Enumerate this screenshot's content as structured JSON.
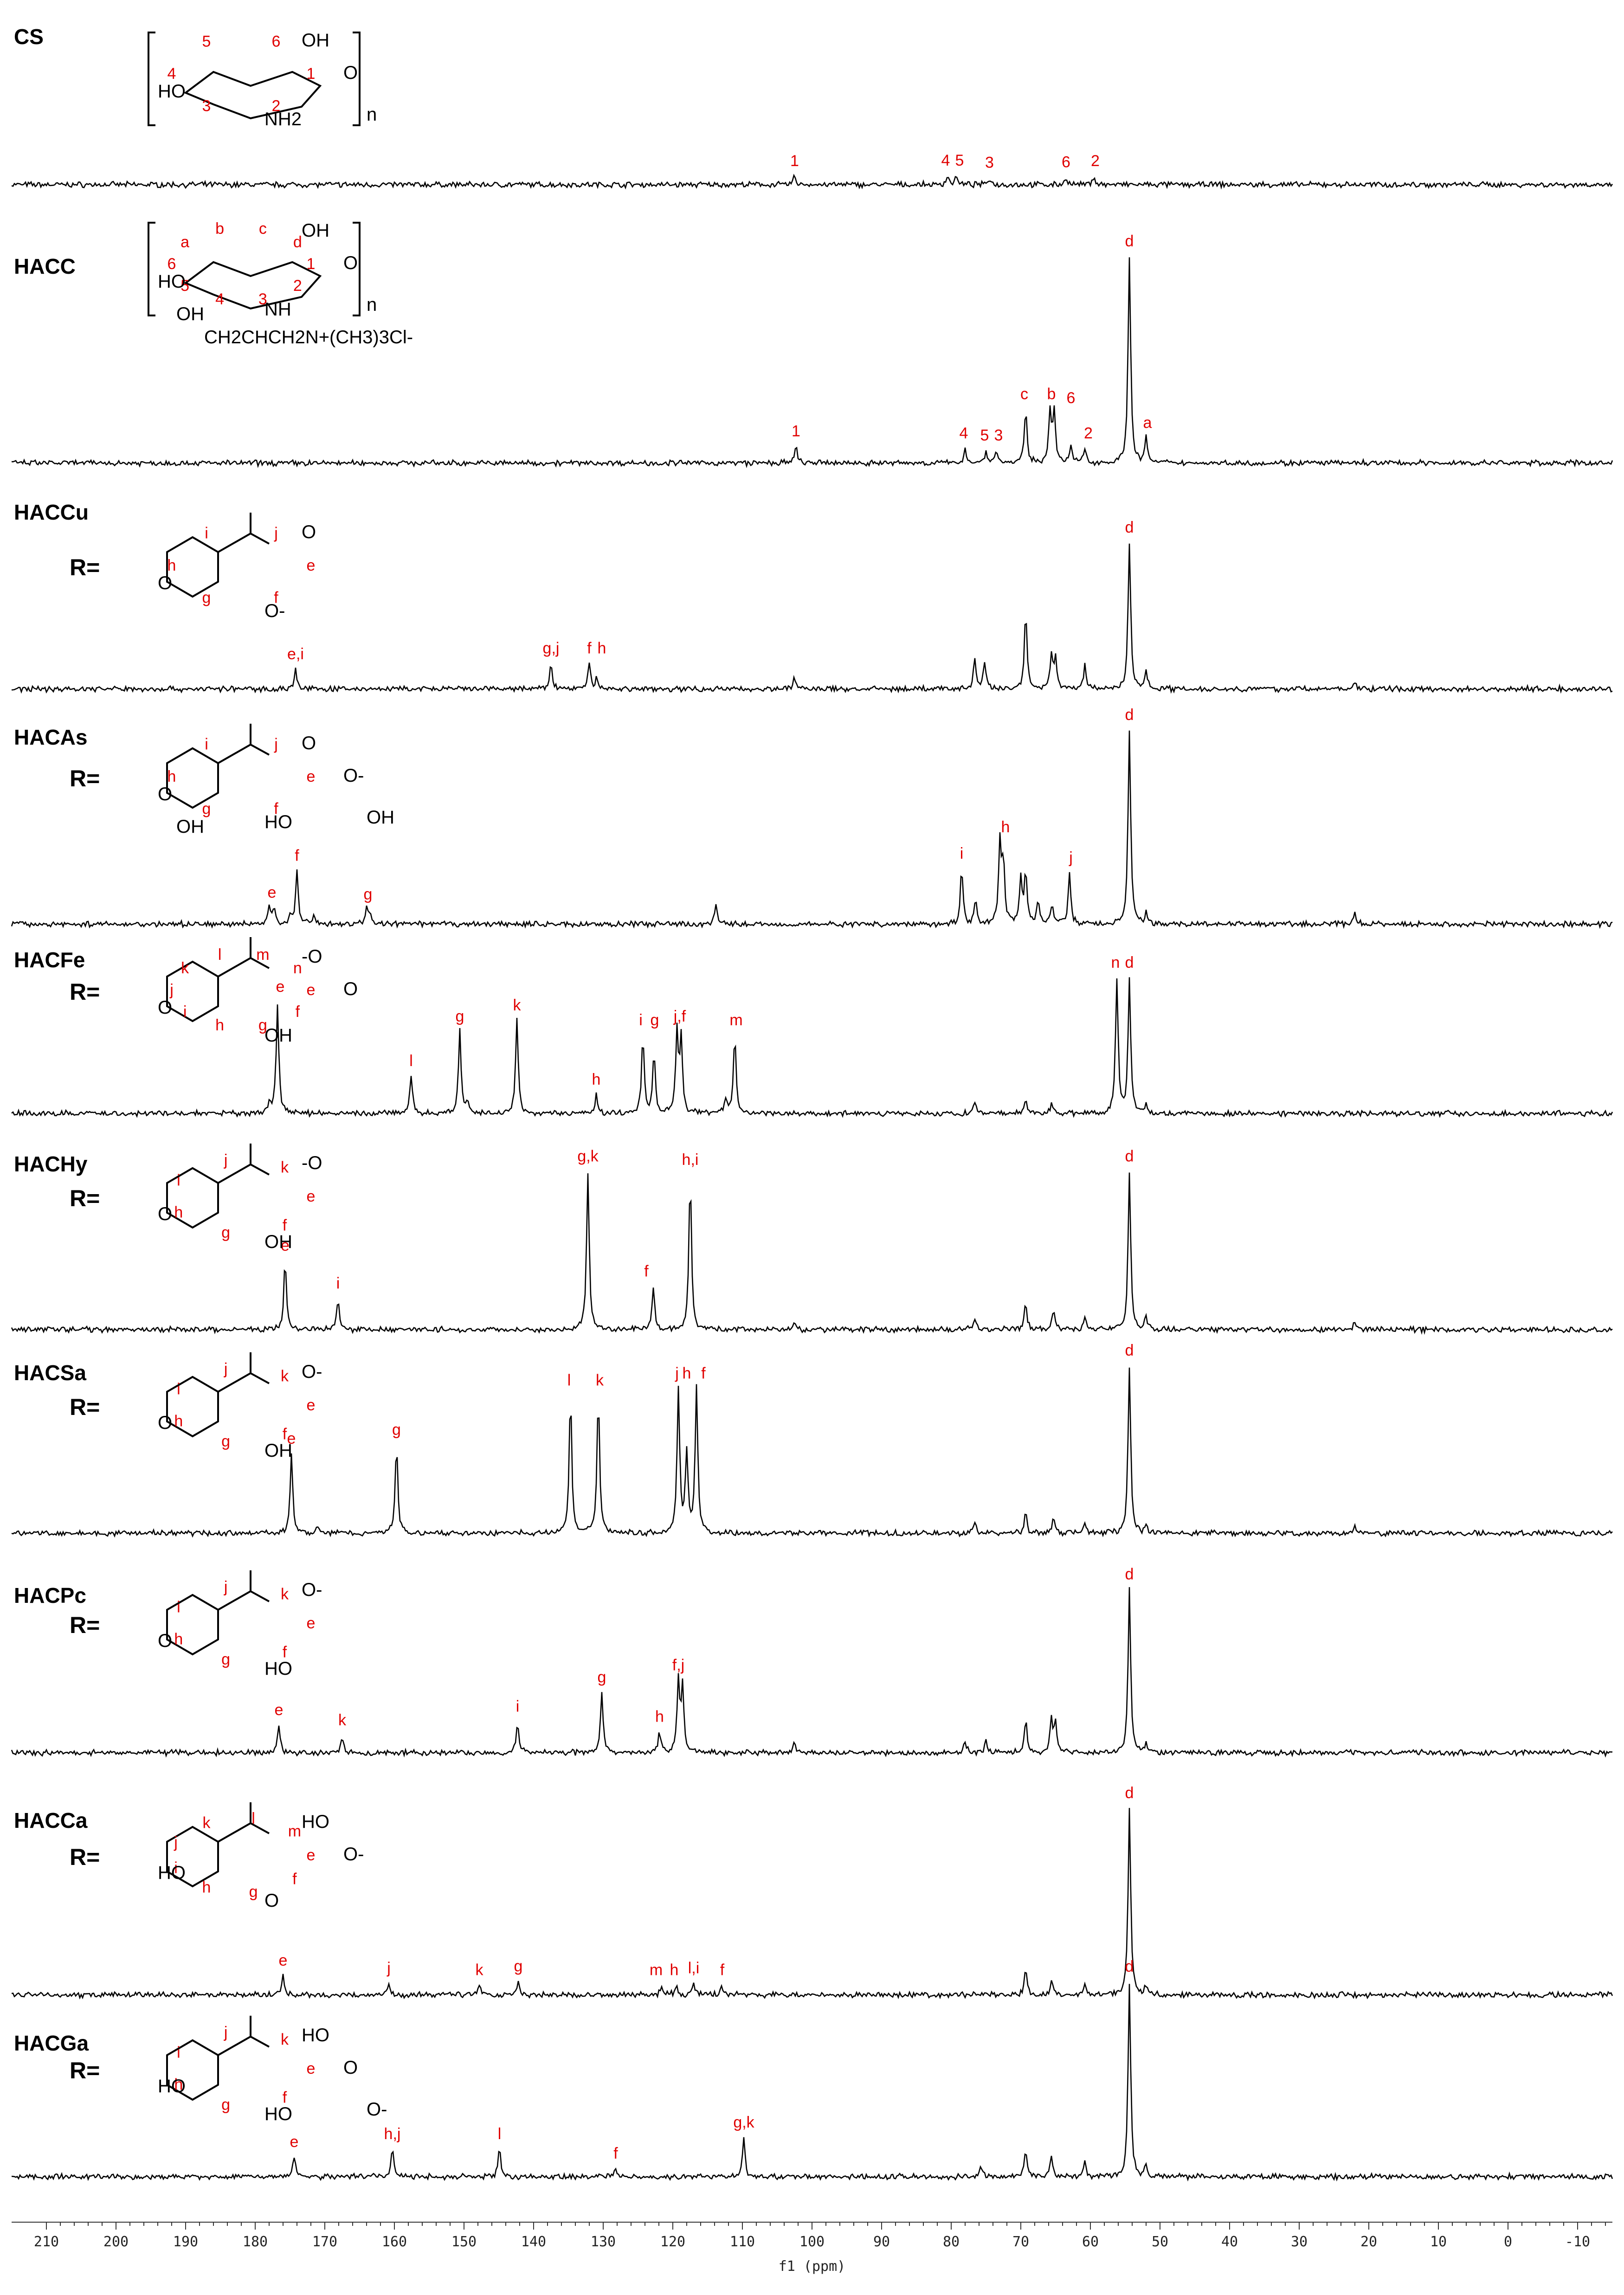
{
  "chart_data": {
    "type": "line",
    "subtype": "stacked 13C NMR spectra",
    "xlabel": "f1 (ppm)",
    "xlim": [
      215,
      -15
    ],
    "x_reversed": true,
    "x_ticks": [
      210,
      200,
      190,
      180,
      170,
      160,
      150,
      140,
      130,
      120,
      110,
      100,
      90,
      80,
      70,
      60,
      50,
      40,
      30,
      20,
      10,
      0,
      -10
    ],
    "line_color": "#000000",
    "label_color": "#e00000",
    "spectra": [
      {
        "name": "CS",
        "structure": {
          "r_label": "",
          "atom_labels": [
            "1",
            "2",
            "3",
            "4",
            "5",
            "6"
          ],
          "text": [
            "HO",
            "OH",
            "NH2",
            "O",
            "n"
          ]
        },
        "peaks": [
          {
            "x": 102.5,
            "h": 0.15
          },
          {
            "x": 80.5,
            "h": 0.16
          },
          {
            "x": 79.3,
            "h": 0.14
          },
          {
            "x": 74.5,
            "h": 0.12
          },
          {
            "x": 63.5,
            "h": 0.13
          },
          {
            "x": 59.5,
            "h": 0.15
          }
        ],
        "labels": [
          {
            "text": "1",
            "x": 102.5
          },
          {
            "text": "4",
            "x": 80.8
          },
          {
            "text": "5",
            "x": 78.8
          },
          {
            "text": "3",
            "x": 74.5
          },
          {
            "text": "6",
            "x": 63.5
          },
          {
            "text": "2",
            "x": 59.3
          }
        ]
      },
      {
        "name": "HACC",
        "structure": {
          "r_label": "",
          "atom_labels": [
            "1",
            "2",
            "3",
            "4",
            "5",
            "6",
            "a",
            "b",
            "c",
            "d"
          ],
          "text": [
            "HO",
            "OH",
            "NH",
            "O",
            "n",
            "OH",
            "CH2CHCH2N+(CH3)3Cl-"
          ]
        },
        "peaks": [
          {
            "x": 102.3,
            "h": 0.08
          },
          {
            "x": 78.0,
            "h": 0.07
          },
          {
            "x": 75.0,
            "h": 0.06
          },
          {
            "x": 73.5,
            "h": 0.06
          },
          {
            "x": 69.3,
            "h": 0.26
          },
          {
            "x": 65.8,
            "h": 0.26
          },
          {
            "x": 65.2,
            "h": 0.24
          },
          {
            "x": 62.8,
            "h": 0.08
          },
          {
            "x": 60.8,
            "h": 0.07
          },
          {
            "x": 54.4,
            "h": 1.0
          },
          {
            "x": 52.0,
            "h": 0.12
          }
        ],
        "labels": [
          {
            "text": "1",
            "x": 102.3
          },
          {
            "text": "4",
            "x": 78.2
          },
          {
            "text": "5",
            "x": 75.2
          },
          {
            "text": "3",
            "x": 73.2
          },
          {
            "text": "c",
            "x": 69.5
          },
          {
            "text": "b",
            "x": 65.6
          },
          {
            "text": "6",
            "x": 62.8
          },
          {
            "text": "2",
            "x": 60.3
          },
          {
            "text": "d",
            "x": 54.4
          },
          {
            "text": "a",
            "x": 51.8
          }
        ]
      },
      {
        "name": "HACCu",
        "structure": {
          "r_label": "R=",
          "atom_labels": [
            "e",
            "f",
            "g",
            "h",
            "i",
            "j"
          ],
          "text": [
            "O",
            "O",
            "O-"
          ]
        },
        "peaks": [
          {
            "x": 174.2,
            "h": 0.1
          },
          {
            "x": 137.5,
            "h": 0.13
          },
          {
            "x": 132.0,
            "h": 0.13
          },
          {
            "x": 130.9,
            "h": 0.06
          },
          {
            "x": 102.5,
            "h": 0.06
          },
          {
            "x": 76.6,
            "h": 0.16
          },
          {
            "x": 75.2,
            "h": 0.14
          },
          {
            "x": 69.3,
            "h": 0.4
          },
          {
            "x": 65.6,
            "h": 0.18
          },
          {
            "x": 65.0,
            "h": 0.16
          },
          {
            "x": 60.8,
            "h": 0.12
          },
          {
            "x": 54.4,
            "h": 0.75
          },
          {
            "x": 52.0,
            "h": 0.1
          },
          {
            "x": 22.0,
            "h": 0.03
          }
        ],
        "labels": [
          {
            "text": "e,i",
            "x": 174.2
          },
          {
            "text": "g,j",
            "x": 137.5
          },
          {
            "text": "f",
            "x": 132.0
          },
          {
            "text": "h",
            "x": 130.2
          },
          {
            "text": "d",
            "x": 54.4
          }
        ]
      },
      {
        "name": "HACAs",
        "structure": {
          "r_label": "R=",
          "atom_labels": [
            "e",
            "f",
            "g",
            "h",
            "i",
            "j"
          ],
          "text": [
            "O",
            "O",
            "HO",
            "O-",
            "OH",
            "OH"
          ]
        },
        "peaks": [
          {
            "x": 178.0,
            "h": 0.08
          },
          {
            "x": 177.3,
            "h": 0.08
          },
          {
            "x": 175.0,
            "h": 0.05
          },
          {
            "x": 174.0,
            "h": 0.26
          },
          {
            "x": 171.5,
            "h": 0.05
          },
          {
            "x": 164.0,
            "h": 0.07
          },
          {
            "x": 163.5,
            "h": 0.06
          },
          {
            "x": 113.8,
            "h": 0.1
          },
          {
            "x": 78.5,
            "h": 0.27
          },
          {
            "x": 76.5,
            "h": 0.12
          },
          {
            "x": 73.0,
            "h": 0.4
          },
          {
            "x": 72.5,
            "h": 0.3
          },
          {
            "x": 70.0,
            "h": 0.22
          },
          {
            "x": 69.3,
            "h": 0.26
          },
          {
            "x": 67.5,
            "h": 0.12
          },
          {
            "x": 65.5,
            "h": 0.1
          },
          {
            "x": 63.0,
            "h": 0.25
          },
          {
            "x": 54.4,
            "h": 0.95
          },
          {
            "x": 52.0,
            "h": 0.05
          },
          {
            "x": 22.0,
            "h": 0.05
          }
        ],
        "labels": [
          {
            "text": "e",
            "x": 177.6
          },
          {
            "text": "f",
            "x": 174.0
          },
          {
            "text": "g",
            "x": 163.8
          },
          {
            "text": "i",
            "x": 78.5
          },
          {
            "text": "h",
            "x": 72.2
          },
          {
            "text": "j",
            "x": 62.8
          },
          {
            "text": "d",
            "x": 54.4
          }
        ]
      },
      {
        "name": "HACFe",
        "structure": {
          "r_label": "R=",
          "atom_labels": [
            "e",
            "f",
            "g",
            "h",
            "i",
            "j",
            "k",
            "l",
            "m",
            "n"
          ],
          "text": [
            "O",
            "-O",
            "OH",
            "O"
          ]
        },
        "peaks": [
          {
            "x": 178.0,
            "h": 0.06
          },
          {
            "x": 176.8,
            "h": 0.6
          },
          {
            "x": 157.6,
            "h": 0.2
          },
          {
            "x": 150.6,
            "h": 0.44
          },
          {
            "x": 149.5,
            "h": 0.06
          },
          {
            "x": 142.4,
            "h": 0.5
          },
          {
            "x": 131.0,
            "h": 0.1
          },
          {
            "x": 124.3,
            "h": 0.42
          },
          {
            "x": 122.7,
            "h": 0.32
          },
          {
            "x": 119.4,
            "h": 0.44
          },
          {
            "x": 118.8,
            "h": 0.4
          },
          {
            "x": 112.4,
            "h": 0.07
          },
          {
            "x": 111.1,
            "h": 0.42
          },
          {
            "x": 76.6,
            "h": 0.05
          },
          {
            "x": 69.3,
            "h": 0.07
          },
          {
            "x": 65.6,
            "h": 0.05
          },
          {
            "x": 56.2,
            "h": 0.73
          },
          {
            "x": 54.4,
            "h": 0.73
          },
          {
            "x": 52.0,
            "h": 0.04
          }
        ],
        "labels": [
          {
            "text": "e",
            "x": 176.4
          },
          {
            "text": "l",
            "x": 157.6
          },
          {
            "text": "g",
            "x": 150.6
          },
          {
            "text": "k",
            "x": 142.4
          },
          {
            "text": "h",
            "x": 131.0
          },
          {
            "text": "i",
            "x": 124.6
          },
          {
            "text": "g",
            "x": 122.6
          },
          {
            "text": "j,f",
            "x": 119.0
          },
          {
            "text": "m",
            "x": 110.9
          },
          {
            "text": "n",
            "x": 56.4
          },
          {
            "text": "d",
            "x": 54.4
          }
        ]
      },
      {
        "name": "HACHy",
        "structure": {
          "r_label": "R=",
          "atom_labels": [
            "e",
            "f",
            "g",
            "h",
            "i",
            "j",
            "k"
          ],
          "text": [
            "O",
            "-O",
            "OH"
          ]
        },
        "peaks": [
          {
            "x": 175.7,
            "h": 0.4
          },
          {
            "x": 168.1,
            "h": 0.18
          },
          {
            "x": 132.2,
            "h": 0.92
          },
          {
            "x": 122.8,
            "h": 0.25
          },
          {
            "x": 117.5,
            "h": 0.9
          },
          {
            "x": 102.5,
            "h": 0.04
          },
          {
            "x": 76.6,
            "h": 0.07
          },
          {
            "x": 69.3,
            "h": 0.15
          },
          {
            "x": 65.3,
            "h": 0.12
          },
          {
            "x": 60.8,
            "h": 0.08
          },
          {
            "x": 54.4,
            "h": 0.92
          },
          {
            "x": 52.0,
            "h": 0.07
          },
          {
            "x": 22.0,
            "h": 0.04
          }
        ],
        "labels": [
          {
            "text": "e",
            "x": 175.7
          },
          {
            "text": "i",
            "x": 168.1
          },
          {
            "text": "g,k",
            "x": 132.2
          },
          {
            "text": "f",
            "x": 123.8
          },
          {
            "text": "h,i",
            "x": 117.5
          },
          {
            "text": "d",
            "x": 54.4
          }
        ]
      },
      {
        "name": "HACSa",
        "structure": {
          "r_label": "R=",
          "atom_labels": [
            "e",
            "f",
            "g",
            "h",
            "i",
            "j",
            "k"
          ],
          "text": [
            "O",
            "O-",
            "OH"
          ]
        },
        "peaks": [
          {
            "x": 174.8,
            "h": 0.45
          },
          {
            "x": 171.0,
            "h": 0.03
          },
          {
            "x": 159.7,
            "h": 0.5
          },
          {
            "x": 134.7,
            "h": 0.78
          },
          {
            "x": 130.7,
            "h": 0.78
          },
          {
            "x": 119.2,
            "h": 0.82
          },
          {
            "x": 118.0,
            "h": 0.45
          },
          {
            "x": 116.6,
            "h": 0.82
          },
          {
            "x": 76.6,
            "h": 0.06
          },
          {
            "x": 69.3,
            "h": 0.12
          },
          {
            "x": 65.3,
            "h": 0.09
          },
          {
            "x": 60.8,
            "h": 0.06
          },
          {
            "x": 54.4,
            "h": 0.95
          },
          {
            "x": 52.0,
            "h": 0.04
          },
          {
            "x": 22.0,
            "h": 0.04
          }
        ],
        "labels": [
          {
            "text": "e",
            "x": 174.8
          },
          {
            "text": "g",
            "x": 159.7
          },
          {
            "text": "l",
            "x": 134.9
          },
          {
            "text": "k",
            "x": 130.5
          },
          {
            "text": "j",
            "x": 119.4
          },
          {
            "text": "h",
            "x": 118.0
          },
          {
            "text": "f",
            "x": 115.6
          },
          {
            "text": "d",
            "x": 54.4
          }
        ]
      },
      {
        "name": "HACPc",
        "structure": {
          "r_label": "R=",
          "atom_labels": [
            "e",
            "f",
            "g",
            "h",
            "i",
            "j",
            "k"
          ],
          "text": [
            "O",
            "O-",
            "HO"
          ]
        },
        "peaks": [
          {
            "x": 176.6,
            "h": 0.16
          },
          {
            "x": 167.5,
            "h": 0.1
          },
          {
            "x": 142.3,
            "h": 0.18
          },
          {
            "x": 130.2,
            "h": 0.35
          },
          {
            "x": 121.9,
            "h": 0.12
          },
          {
            "x": 119.2,
            "h": 0.42
          },
          {
            "x": 118.6,
            "h": 0.38
          },
          {
            "x": 102.5,
            "h": 0.05
          },
          {
            "x": 78.0,
            "h": 0.07
          },
          {
            "x": 75.0,
            "h": 0.07
          },
          {
            "x": 69.3,
            "h": 0.2
          },
          {
            "x": 65.6,
            "h": 0.2
          },
          {
            "x": 65.0,
            "h": 0.18
          },
          {
            "x": 54.4,
            "h": 0.95
          },
          {
            "x": 52.0,
            "h": 0.06
          }
        ],
        "labels": [
          {
            "text": "e",
            "x": 176.6
          },
          {
            "text": "k",
            "x": 167.5
          },
          {
            "text": "i",
            "x": 142.3
          },
          {
            "text": "g",
            "x": 130.2
          },
          {
            "text": "h",
            "x": 121.9
          },
          {
            "text": "f,j",
            "x": 119.2
          },
          {
            "text": "d",
            "x": 54.4
          }
        ]
      },
      {
        "name": "HACCa",
        "structure": {
          "r_label": "R=",
          "atom_labels": [
            "e",
            "f",
            "g",
            "h",
            "i",
            "j",
            "k",
            "l",
            "m"
          ],
          "text": [
            "HO",
            "HO",
            "O",
            "O-"
          ]
        },
        "peaks": [
          {
            "x": 176.0,
            "h": 0.1
          },
          {
            "x": 160.8,
            "h": 0.06
          },
          {
            "x": 147.8,
            "h": 0.05
          },
          {
            "x": 142.2,
            "h": 0.07
          },
          {
            "x": 121.6,
            "h": 0.05
          },
          {
            "x": 119.5,
            "h": 0.05
          },
          {
            "x": 117.0,
            "h": 0.06
          },
          {
            "x": 113.0,
            "h": 0.05
          },
          {
            "x": 69.3,
            "h": 0.14
          },
          {
            "x": 65.6,
            "h": 0.08
          },
          {
            "x": 60.8,
            "h": 0.06
          },
          {
            "x": 54.4,
            "h": 0.98
          },
          {
            "x": 52.0,
            "h": 0.05
          }
        ],
        "labels": [
          {
            "text": "e",
            "x": 176.0
          },
          {
            "text": "j",
            "x": 160.8
          },
          {
            "text": "k",
            "x": 147.8
          },
          {
            "text": "g",
            "x": 142.2
          },
          {
            "text": "m",
            "x": 122.4
          },
          {
            "text": "h",
            "x": 119.8
          },
          {
            "text": "l,i",
            "x": 117.0
          },
          {
            "text": "f",
            "x": 112.9
          },
          {
            "text": "d",
            "x": 54.4
          }
        ]
      },
      {
        "name": "HACGa",
        "structure": {
          "r_label": "R=",
          "atom_labels": [
            "e",
            "f",
            "g",
            "h",
            "i",
            "j",
            "k"
          ],
          "text": [
            "HO",
            "HO",
            "HO",
            "O",
            "O-"
          ]
        },
        "peaks": [
          {
            "x": 174.4,
            "h": 0.1
          },
          {
            "x": 160.3,
            "h": 0.14
          },
          {
            "x": 144.9,
            "h": 0.14
          },
          {
            "x": 128.2,
            "h": 0.04
          },
          {
            "x": 109.8,
            "h": 0.2
          },
          {
            "x": 75.8,
            "h": 0.06
          },
          {
            "x": 69.3,
            "h": 0.14
          },
          {
            "x": 65.6,
            "h": 0.1
          },
          {
            "x": 60.8,
            "h": 0.07
          },
          {
            "x": 54.4,
            "h": 1.0
          },
          {
            "x": 52.0,
            "h": 0.06
          }
        ],
        "labels": [
          {
            "text": "e",
            "x": 174.4
          },
          {
            "text": "h,j",
            "x": 160.3
          },
          {
            "text": "l",
            "x": 144.9
          },
          {
            "text": "f",
            "x": 128.2
          },
          {
            "text": "g,k",
            "x": 109.8
          },
          {
            "text": "d",
            "x": 54.4
          }
        ]
      }
    ]
  }
}
